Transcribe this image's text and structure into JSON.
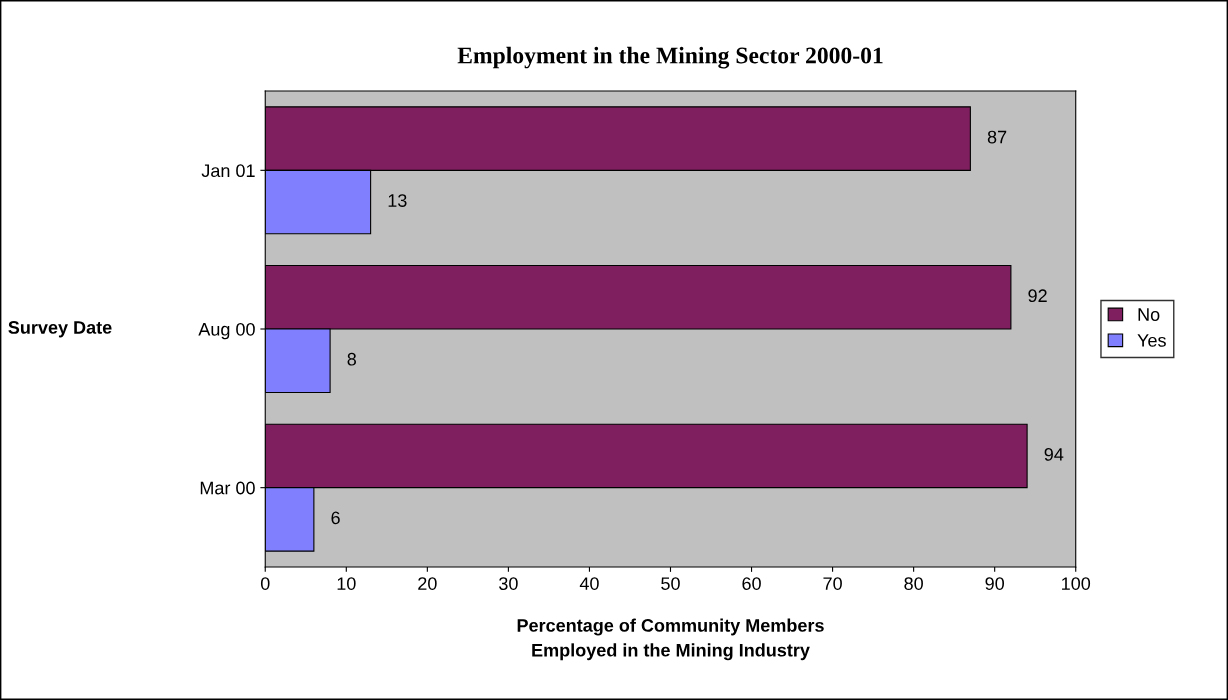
{
  "chart_data": {
    "type": "bar",
    "orientation": "horizontal",
    "title": "Employment in the Mining Sector 2000-01",
    "categories": [
      "Jan 01",
      "Aug 00",
      "Mar 00"
    ],
    "series": [
      {
        "name": "No",
        "color": "#7f1f5f",
        "values": [
          87,
          92,
          94
        ]
      },
      {
        "name": "Yes",
        "color": "#8080ff",
        "values": [
          13,
          8,
          6
        ]
      }
    ],
    "xlabel": "Percentage of Community Members\nEmployed in the Mining Industry",
    "ylabel": "Survey Date",
    "xlim": [
      0,
      100
    ],
    "xticks": [
      0,
      10,
      20,
      30,
      40,
      50,
      60,
      70,
      80,
      90,
      100
    ],
    "data_labels": true,
    "grid": false,
    "legend": "right"
  }
}
